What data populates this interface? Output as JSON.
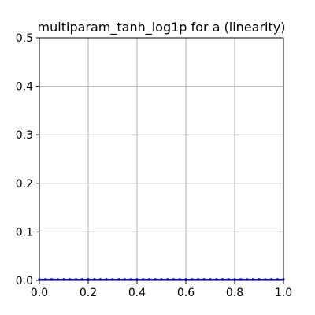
{
  "chart_data": {
    "type": "line",
    "title": "multiparam_tanh_log1p for a (linearity)",
    "xlabel": "",
    "ylabel": "",
    "xlim": [
      0.0,
      1.0
    ],
    "ylim": [
      0.0,
      0.5
    ],
    "x_ticks": [
      0.0,
      0.2,
      0.4,
      0.6,
      0.8,
      1.0
    ],
    "x_tick_labels": [
      "0.0",
      "0.2",
      "0.4",
      "0.6",
      "0.8",
      "1.0"
    ],
    "y_ticks": [
      0.0,
      0.1,
      0.2,
      0.3,
      0.4,
      0.5
    ],
    "y_tick_labels": [
      "0.0",
      "0.1",
      "0.2",
      "0.3",
      "0.4",
      "0.5"
    ],
    "grid": true,
    "series": [
      {
        "color": "#0000ff",
        "marker": "dot",
        "x": [
          0.0,
          0.025,
          0.05,
          0.075,
          0.1,
          0.125,
          0.15,
          0.175,
          0.2,
          0.225,
          0.25,
          0.275,
          0.3,
          0.325,
          0.35,
          0.375,
          0.4,
          0.425,
          0.45,
          0.475,
          0.5,
          0.525,
          0.55,
          0.575,
          0.6,
          0.625,
          0.65,
          0.675,
          0.7,
          0.725,
          0.75,
          0.775,
          0.8,
          0.825,
          0.85,
          0.875,
          0.9,
          0.925,
          0.95,
          0.975,
          1.0
        ],
        "y": [
          0.002,
          0.002,
          0.002,
          0.002,
          0.002,
          0.002,
          0.002,
          0.002,
          0.002,
          0.002,
          0.002,
          0.002,
          0.002,
          0.002,
          0.002,
          0.002,
          0.002,
          0.002,
          0.002,
          0.002,
          0.002,
          0.002,
          0.002,
          0.002,
          0.002,
          0.002,
          0.002,
          0.002,
          0.002,
          0.002,
          0.002,
          0.002,
          0.002,
          0.002,
          0.002,
          0.002,
          0.002,
          0.002,
          0.002,
          0.002,
          0.002
        ]
      }
    ],
    "colors": {
      "grid": "#b0b0b0",
      "axes": "#000000",
      "background": "#ffffff"
    }
  }
}
